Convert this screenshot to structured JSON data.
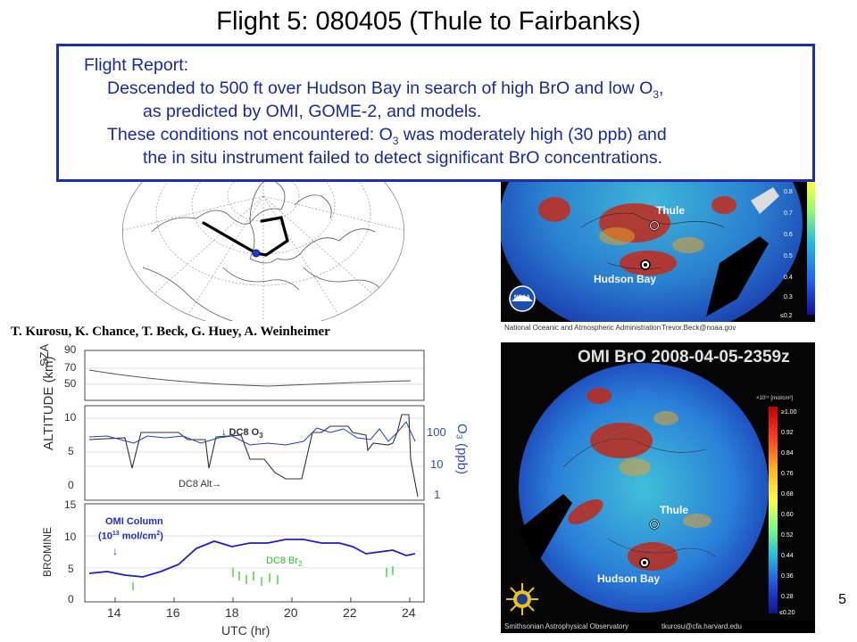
{
  "slide": {
    "title": "Flight 5: 080405 (Thule to Fairbanks)",
    "page_number": "5"
  },
  "report": {
    "heading": "Flight Report:",
    "line1": "Descended to 500 ft over Hudson Bay in search of high BrO and low O",
    "line1_sub": "3",
    "line1_end": ",",
    "line2": "as predicted by OMI, GOME-2, and models.",
    "line3a": "These conditions not encountered: O",
    "line3_sub": "3",
    "line3b": " was moderately high (30 ppb) and",
    "line4": "the in situ instrument failed to detect significant BrO concentrations."
  },
  "authors": "T. Kurosu, K. Chance, T. Beck, G. Huey, A. Weinheimer",
  "noaa_map": {
    "thule_label": "Thule",
    "hudson_label": "Hudson Bay",
    "footer_left": "National Oceanic and Atmospheric Administration",
    "footer_right": "Trevor.Beck@noaa.gov",
    "colorbar_ticks": [
      "0.8",
      "0.7",
      "0.6",
      "0.5",
      "0.4",
      "0.3",
      "≤0.2"
    ],
    "logo_text": "NOAA"
  },
  "omi_map": {
    "title": "OMI BrO 2008-04-05-2359z",
    "thule_label": "Thule",
    "hudson_label": "Hudson Bay",
    "footer_left": "Smithsonian Astrophysical Observatory",
    "footer_right": "tkurosu@cfa.harvard.edu",
    "colorbar_unit": "×10¹⁴ [mol/cm²]",
    "colorbar_ticks": [
      "≥1.00",
      "0.92",
      "0.84",
      "0.76",
      "0.68",
      "0.60",
      "0.52",
      "0.44",
      "0.36",
      "0.28",
      "≤0.20"
    ]
  },
  "plot": {
    "sza_label": "SZA",
    "sza_ticks": [
      "90",
      "70",
      "50"
    ],
    "alt_label": "ALTITUDE (km)",
    "alt_ticks": [
      "10",
      "5",
      "0"
    ],
    "o3_label": "O₃ (ppb)",
    "o3_ticks": [
      "100",
      "10",
      "1"
    ],
    "br_label": "BROMINE",
    "br_ticks": [
      "15",
      "10",
      "5",
      "0"
    ],
    "x_ticks": [
      "14",
      "16",
      "18",
      "20",
      "22",
      "24"
    ],
    "x_label": "UTC (hr)",
    "dc8_o3": "↓ DC8 O",
    "dc8_o3_sub": "3",
    "dc8_alt": "DC8 Alt→",
    "omi_col_1": "OMI Column",
    "omi_col_2": "(10",
    "omi_col_2_sup": "13",
    "omi_col_2_end": " mol/cm",
    "omi_col_2_sup2": "2",
    "omi_col_2_close": ")",
    "omi_arrow": "↓",
    "dc8_br": "DC8 Br",
    "dc8_br_sub": "2"
  }
}
